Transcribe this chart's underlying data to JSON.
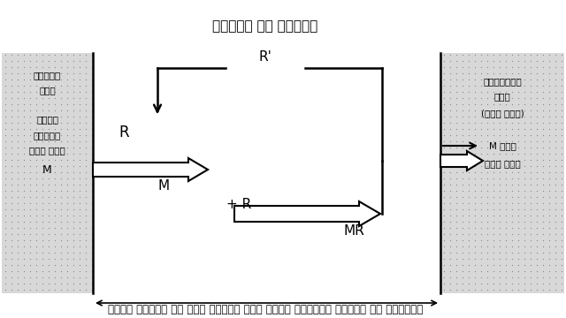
{
  "title_top": "श्वसन से ऊर्जा",
  "caption": "मृदा विलयन से जड़ कोशों में पोषक तत्त्व आयनों का अभिगमन",
  "left_label_line1": "बाह्य",
  "left_label_line2": "सतह",
  "left_label_line3": "मृदा",
  "left_label_line4": "विलयन",
  "left_label_line5": "में आयन",
  "left_label_M": "M",
  "right_label_line1": "आन्तरिक",
  "right_label_line2": "सतह",
  "right_label_line3": "(जड़ कोश)",
  "right_label_M": "M आयन",
  "right_label_root": "जड़ में",
  "label_R": "R",
  "label_Rprime": "R'",
  "label_M_arrow": "M",
  "label_plusR": "+ R",
  "label_MR": "MR"
}
